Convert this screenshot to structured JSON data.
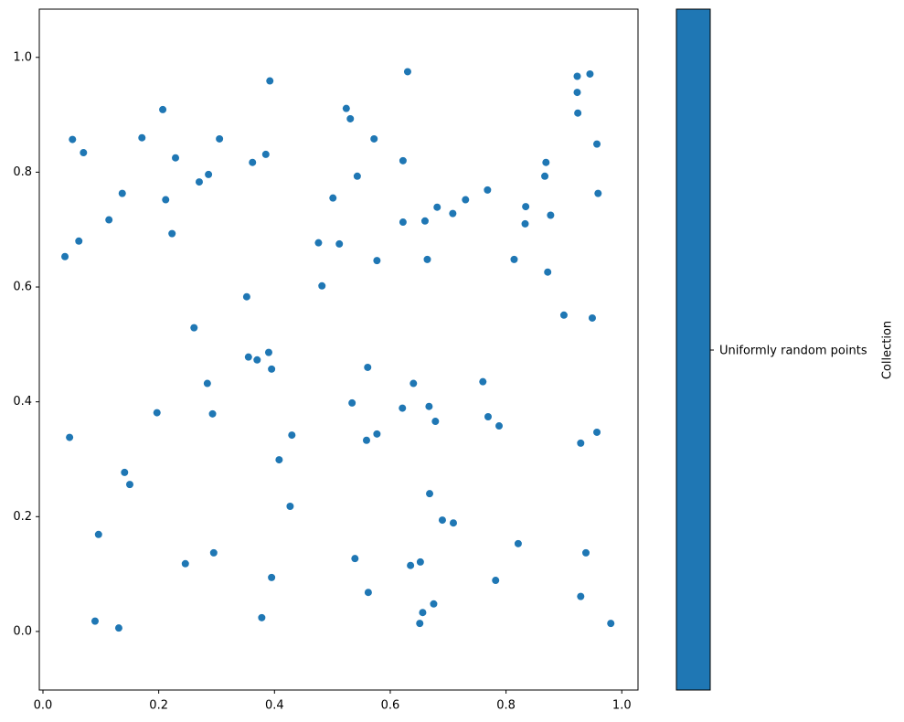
{
  "chart_data": {
    "type": "scatter",
    "series": [
      {
        "name": "Uniformly random points",
        "color": "#1f77b4",
        "x": [
          0.63,
          0.392,
          0.923,
          0.945,
          0.923,
          0.924,
          0.524,
          0.531,
          0.207,
          0.051,
          0.07,
          0.171,
          0.305,
          0.572,
          0.957,
          0.385,
          0.362,
          0.229,
          0.622,
          0.869,
          0.286,
          0.27,
          0.543,
          0.867,
          0.137,
          0.768,
          0.959,
          0.212,
          0.501,
          0.73,
          0.681,
          0.834,
          0.708,
          0.877,
          0.114,
          0.622,
          0.66,
          0.833,
          0.223,
          0.062,
          0.476,
          0.512,
          0.038,
          0.577,
          0.664,
          0.814,
          0.872,
          0.482,
          0.352,
          0.9,
          0.949,
          0.261,
          0.39,
          0.355,
          0.37,
          0.395,
          0.561,
          0.76,
          0.284,
          0.64,
          0.534,
          0.621,
          0.667,
          0.197,
          0.293,
          0.769,
          0.678,
          0.788,
          0.957,
          0.43,
          0.577,
          0.046,
          0.559,
          0.929,
          0.408,
          0.141,
          0.15,
          0.668,
          0.427,
          0.69,
          0.709,
          0.096,
          0.821,
          0.295,
          0.938,
          0.539,
          0.246,
          0.652,
          0.635,
          0.395,
          0.782,
          0.562,
          0.929,
          0.675,
          0.656,
          0.378,
          0.09,
          0.651,
          0.981,
          0.131
        ],
        "y": [
          0.975,
          0.959,
          0.967,
          0.971,
          0.939,
          0.903,
          0.911,
          0.893,
          0.909,
          0.857,
          0.834,
          0.86,
          0.858,
          0.858,
          0.849,
          0.831,
          0.817,
          0.825,
          0.82,
          0.817,
          0.796,
          0.783,
          0.793,
          0.793,
          0.763,
          0.769,
          0.763,
          0.752,
          0.755,
          0.752,
          0.739,
          0.74,
          0.728,
          0.725,
          0.717,
          0.713,
          0.715,
          0.71,
          0.693,
          0.68,
          0.677,
          0.675,
          0.653,
          0.646,
          0.648,
          0.648,
          0.626,
          0.602,
          0.583,
          0.551,
          0.546,
          0.529,
          0.486,
          0.478,
          0.473,
          0.457,
          0.46,
          0.435,
          0.432,
          0.432,
          0.398,
          0.389,
          0.392,
          0.381,
          0.379,
          0.374,
          0.366,
          0.358,
          0.347,
          0.342,
          0.344,
          0.338,
          0.333,
          0.328,
          0.299,
          0.277,
          0.256,
          0.24,
          0.218,
          0.194,
          0.189,
          0.169,
          0.153,
          0.137,
          0.137,
          0.127,
          0.118,
          0.121,
          0.115,
          0.094,
          0.089,
          0.068,
          0.061,
          0.048,
          0.033,
          0.024,
          0.018,
          0.014,
          0.014,
          0.006
        ]
      }
    ],
    "xlim": [
      -0.0063,
      1.028
    ],
    "ylim": [
      -0.102,
      1.084
    ],
    "xticks": [
      {
        "value": 0,
        "label": "0.0"
      },
      0.2,
      0.4,
      0.6,
      0.8,
      {
        "value": 1,
        "label": "1.0"
      }
    ],
    "yticks": [
      {
        "value": 0,
        "label": "0.0"
      },
      0.2,
      0.4,
      0.6,
      0.8,
      {
        "value": 1,
        "label": "1.0"
      }
    ],
    "colorbar_label": "Collection"
  }
}
